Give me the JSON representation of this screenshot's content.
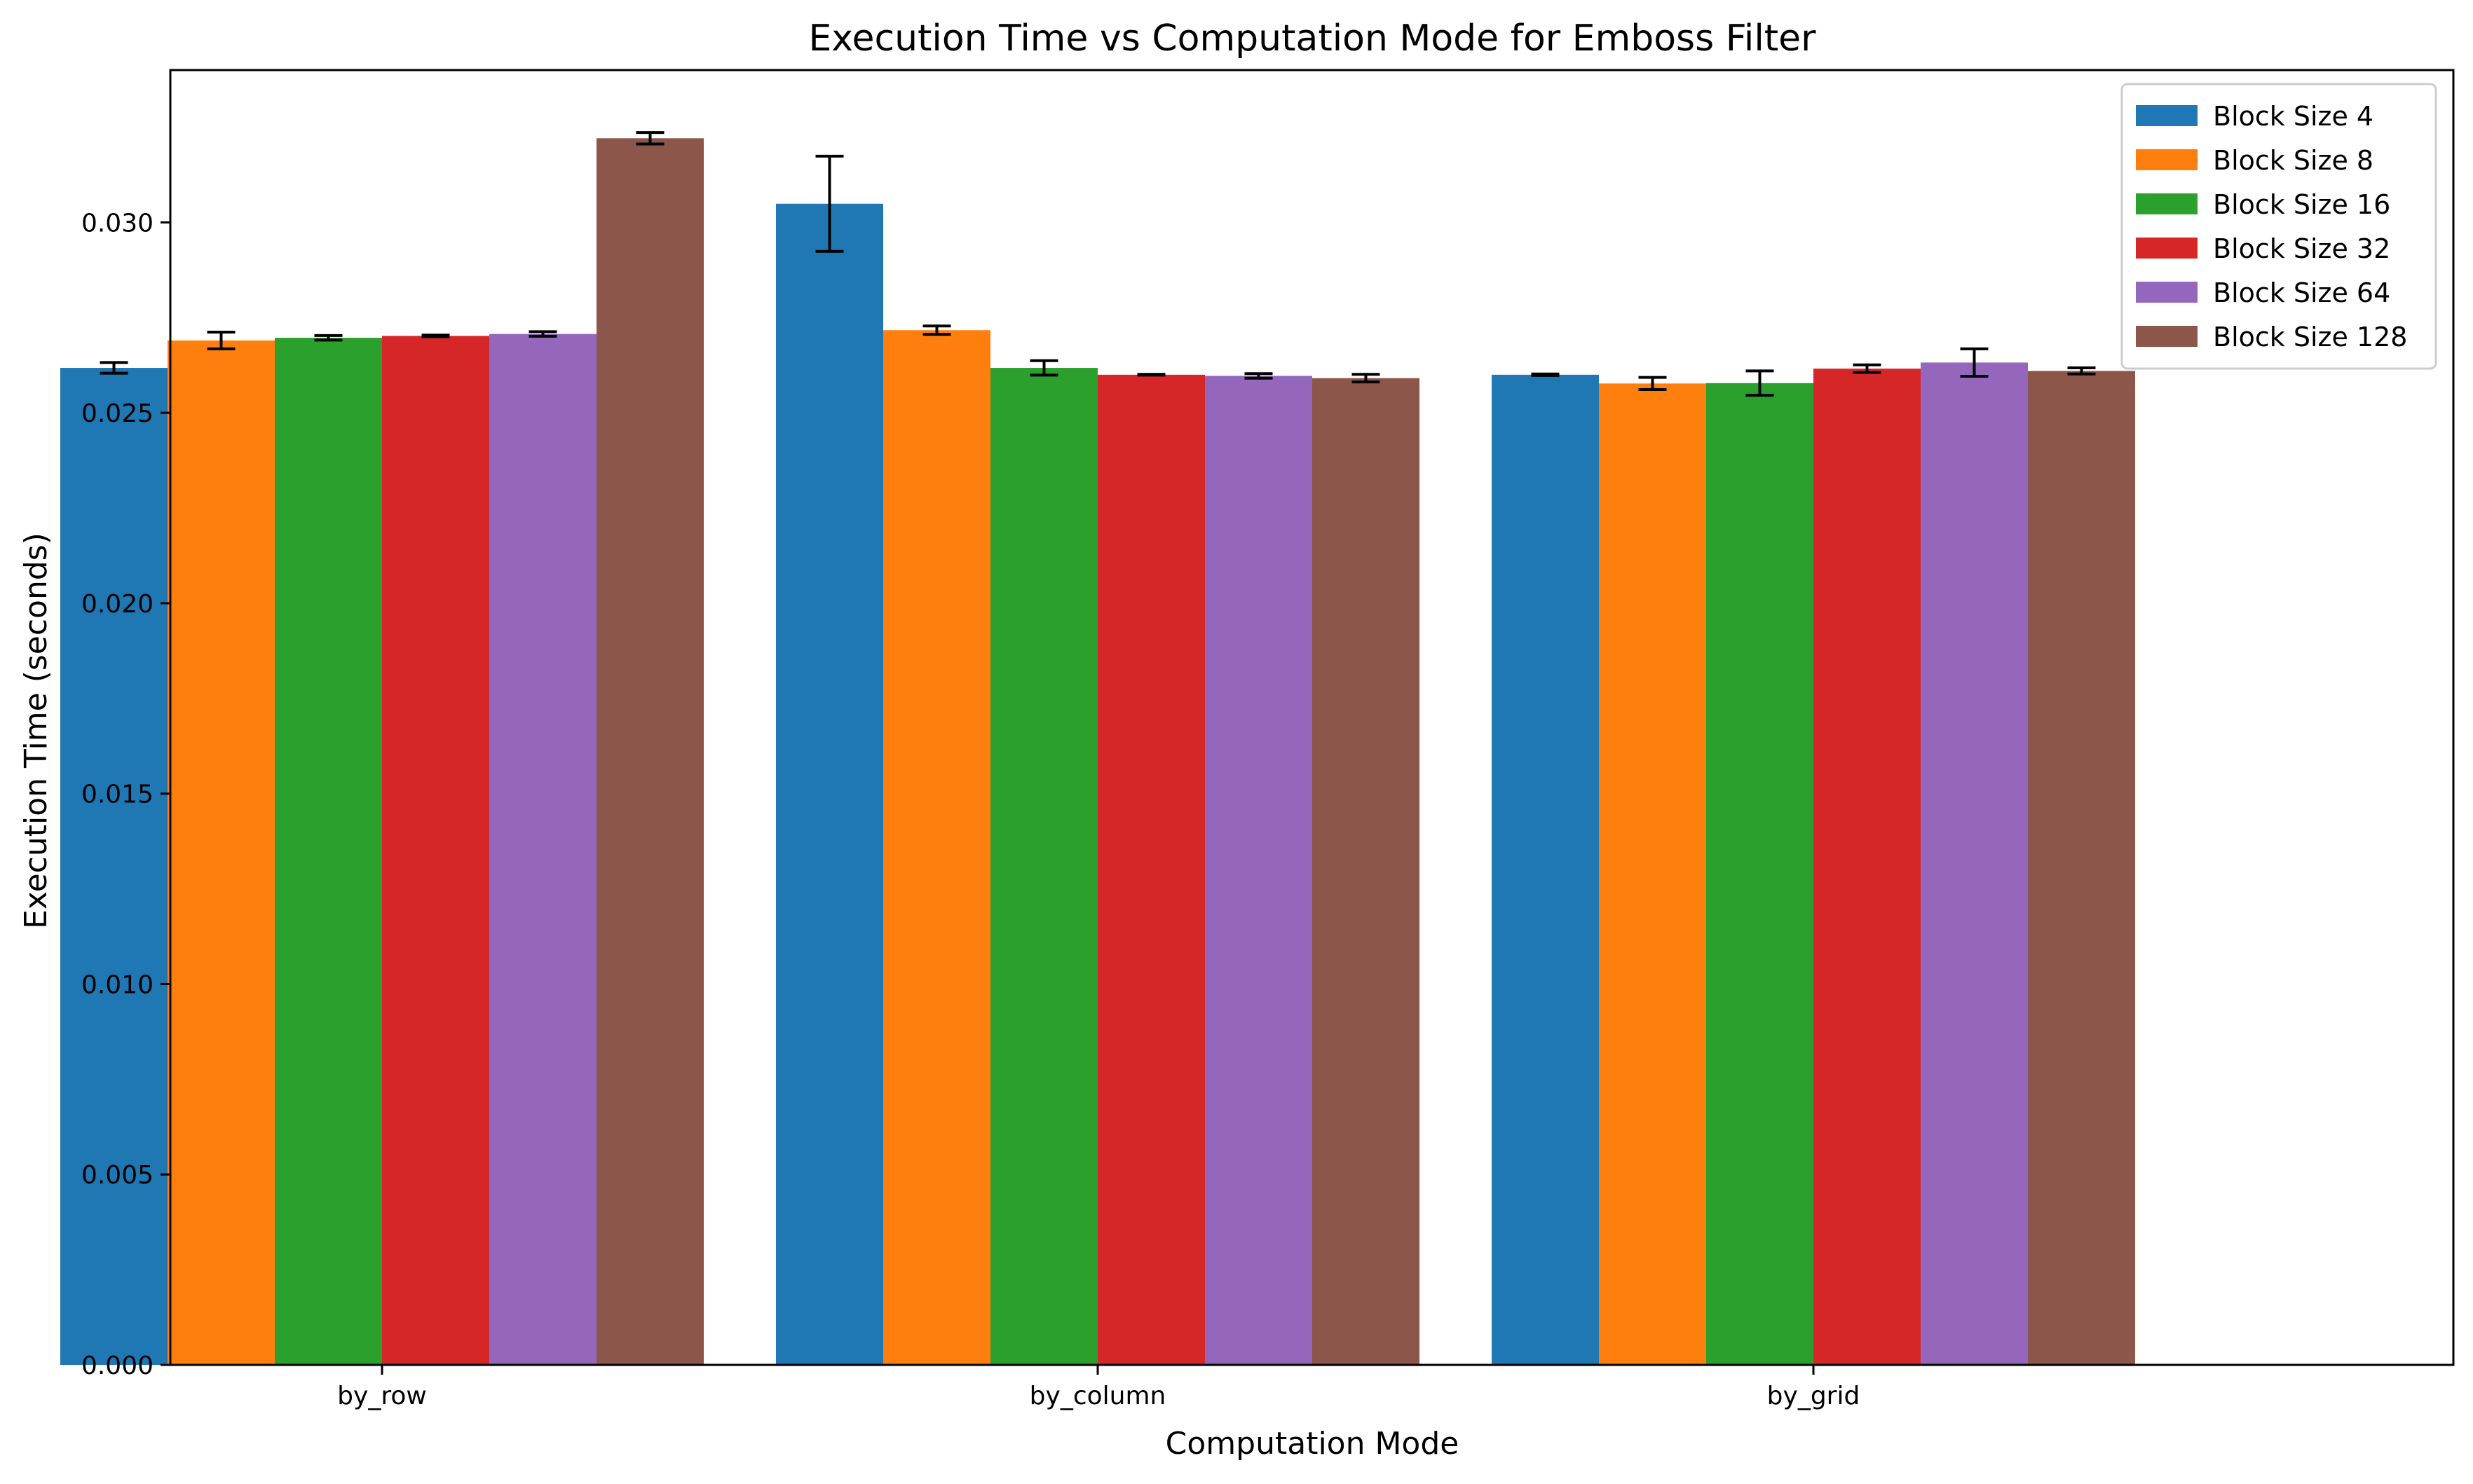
{
  "chart_data": {
    "type": "bar",
    "title": "Execution Time vs Computation Mode for Emboss Filter",
    "xlabel": "Computation Mode",
    "ylabel": "Execution Time (seconds)",
    "categories": [
      "by_row",
      "by_column",
      "by_grid"
    ],
    "ylim": [
      0,
      0.034
    ],
    "yticks": [
      0.0,
      0.005,
      0.01,
      0.015,
      0.02,
      0.025,
      0.03
    ],
    "ytick_labels": [
      "0.000",
      "0.005",
      "0.010",
      "0.015",
      "0.020",
      "0.025",
      "0.030"
    ],
    "grid": false,
    "legend_position": "top-right",
    "error_bars": true,
    "series": [
      {
        "name": "Block Size 4",
        "color": "#1f77b4",
        "values": [
          0.02618,
          0.03049,
          0.026
        ],
        "errors": [
          0.00014,
          0.00125,
          2e-05
        ]
      },
      {
        "name": "Block Size 8",
        "color": "#ff7f0e",
        "values": [
          0.0269,
          0.02717,
          0.02577
        ],
        "errors": [
          0.00022,
          0.00011,
          0.00016
        ]
      },
      {
        "name": "Block Size 16",
        "color": "#2ca02c",
        "values": [
          0.02697,
          0.02618,
          0.02578
        ],
        "errors": [
          6e-05,
          0.00019,
          0.00032
        ]
      },
      {
        "name": "Block Size 32",
        "color": "#d62728",
        "values": [
          0.02702,
          0.026,
          0.02616
        ],
        "errors": [
          2e-05,
          1e-05,
          0.0001
        ]
      },
      {
        "name": "Block Size 64",
        "color": "#9467bd",
        "values": [
          0.02707,
          0.02597,
          0.02632
        ],
        "errors": [
          6e-05,
          6e-05,
          0.00036
        ]
      },
      {
        "name": "Block Size 128",
        "color": "#8c564b",
        "values": [
          0.03221,
          0.02591,
          0.0261
        ],
        "errors": [
          0.00015,
          0.0001,
          8e-05
        ]
      }
    ]
  }
}
